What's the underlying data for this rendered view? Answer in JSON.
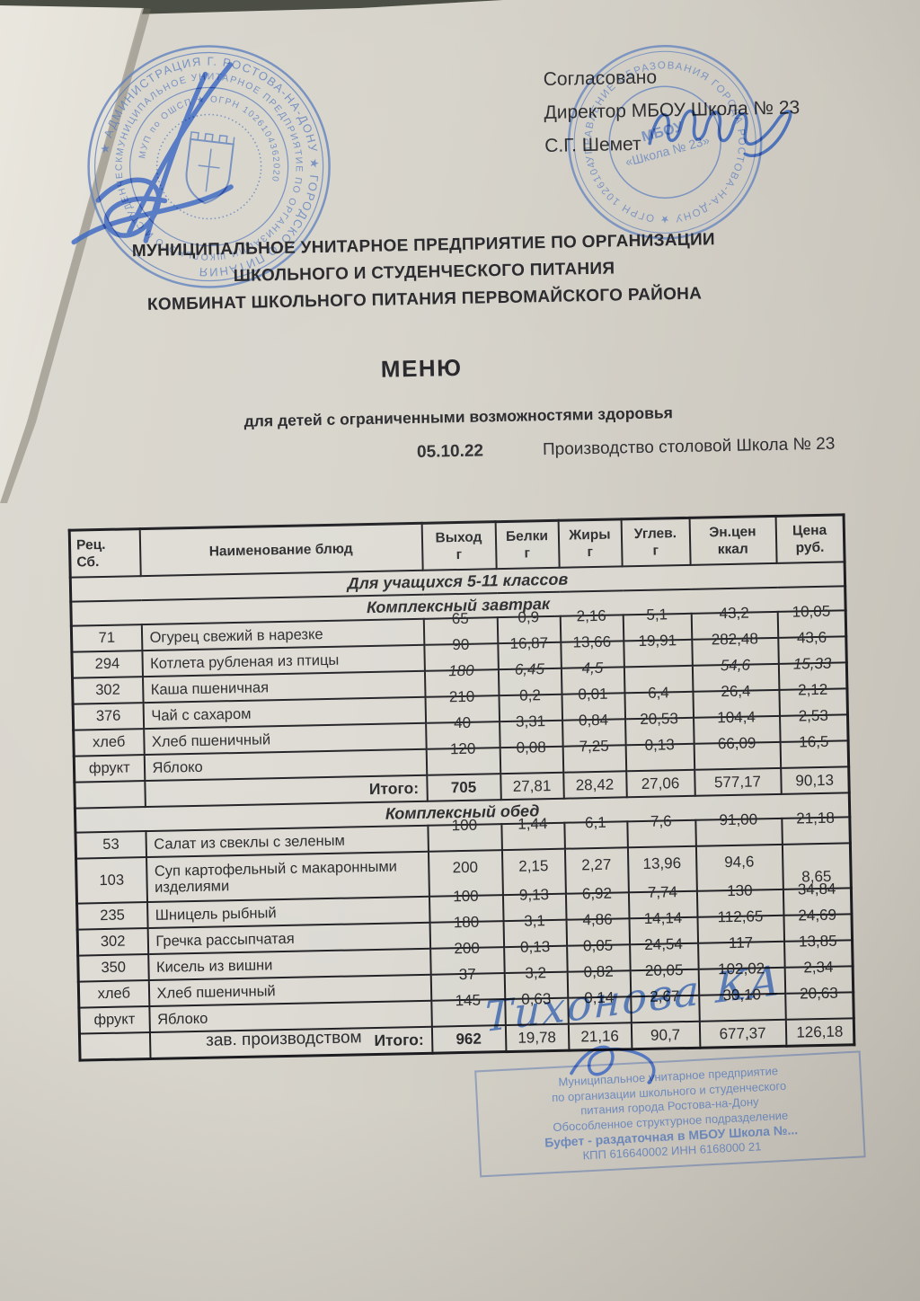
{
  "approval": {
    "line1": "Согласовано",
    "line2": "Директор МБОУ Школа   № 23",
    "line3": "С.Г.  Шемет"
  },
  "org": {
    "line1": "МУНИЦИПАЛЬНОЕ УНИТАРНОЕ ПРЕДПРИЯТИЕ ПО ОРГАНИЗАЦИИ",
    "line2": "ШКОЛЬНОГО И СТУДЕНЧЕСКОГО ПИТАНИЯ",
    "line3": "КОМБИНАТ ШКОЛЬНОГО ПИТАНИЯ ПЕРВОМАЙСКОГО  РАЙОНА"
  },
  "menu": {
    "title": "МЕНЮ",
    "subtitle": "для детей с ограниченными возможностями здоровья",
    "date": "05.10.22",
    "production": "Производство столовой Школа  № 23"
  },
  "table": {
    "headers": {
      "rec1": "Рец.",
      "rec2": "Сб.",
      "name": "Наименование блюд",
      "out1": "Выход",
      "out2": "г",
      "prot1": "Белки",
      "prot2": "г",
      "fat1": "Жиры",
      "fat2": "г",
      "carb1": "Углев.",
      "carb2": "г",
      "kcal1": "Эн.цен",
      "kcal2": "ккал",
      "price1": "Цена",
      "price2": "руб."
    },
    "section_title": "Для учащихся 5-11 классов",
    "total_label": "Итого:",
    "breakfast": {
      "title": "Комплексный  завтрак",
      "rows": [
        {
          "code": "71",
          "name": "Огурец свежий в нарезке",
          "out": "65",
          "protein": "0,9",
          "fat": "2,16",
          "carb": "5,1",
          "kcal": "43,2",
          "price": "10,05"
        },
        {
          "code": "294",
          "name": "Котлета рубленая из птицы",
          "out": "90",
          "protein": "16,87",
          "fat": "13,66",
          "carb": "19,91",
          "kcal": "282,48",
          "price": "43,6"
        },
        {
          "code": "302",
          "name": "Каша пшеничная",
          "out": "180",
          "protein": "6,45",
          "fat": "4,5",
          "carb": "",
          "kcal": "54,6",
          "price": "15,33",
          "italic": true
        },
        {
          "code": "376",
          "name": "Чай с сахаром",
          "out": "210",
          "protein": "0,2",
          "fat": "0,01",
          "carb": "6,4",
          "kcal": "26,4",
          "price": "2,12"
        },
        {
          "code": "хлеб",
          "name": "Хлеб пшеничный",
          "out": "40",
          "protein": "3,31",
          "fat": "0,84",
          "carb": "20,53",
          "kcal": "104,4",
          "price": "2,53"
        },
        {
          "code": "фрукт",
          "name": "Яблоко",
          "out": "120",
          "protein": "0,08",
          "fat": "7,25",
          "carb": "0,13",
          "kcal": "66,09",
          "price": "16,5"
        }
      ],
      "total": {
        "out": "705",
        "protein": "27,81",
        "fat": "28,42",
        "carb": "27,06",
        "kcal": "577,17",
        "price": "90,13"
      }
    },
    "lunch": {
      "title": "Комплексный  обед",
      "rows": [
        {
          "code": "53",
          "name": "Салат из свеклы с зеленым",
          "out": "100",
          "protein": "1,44",
          "fat": "6,1",
          "carb": "7,6",
          "kcal": "91,00",
          "price": "21,18"
        },
        {
          "code": "103",
          "name": "Суп картофельный с макаронными изделиями",
          "out": "200",
          "protein": "2,15",
          "fat": "2,27",
          "carb": "13,96",
          "kcal": "94,6",
          "price": "8,65",
          "tall": true
        },
        {
          "code": "235",
          "name": "Шницель рыбный",
          "out": "100",
          "protein": "9,13",
          "fat": "6,92",
          "carb": "7,74",
          "kcal": "130",
          "price": "34,84"
        },
        {
          "code": "302",
          "name": "Гречка рассыпчатая",
          "out": "180",
          "protein": "3,1",
          "fat": "4,86",
          "carb": "14,14",
          "kcal": "112,65",
          "price": "24,69"
        },
        {
          "code": "350",
          "name": "Кисель из вишни",
          "out": "200",
          "protein": "0,13",
          "fat": "0,05",
          "carb": "24,54",
          "kcal": "117",
          "price": "13,85"
        },
        {
          "code": "хлеб",
          "name": "Хлеб пшеничный",
          "out": "37",
          "protein": "3,2",
          "fat": "0,82",
          "carb": "20,05",
          "kcal": "102,02",
          "price": "2,34"
        },
        {
          "code": "фрукт",
          "name": "Яблоко",
          "out": "145",
          "protein": "0,63",
          "fat": "0,14",
          "carb": "2,67",
          "kcal": "30,10",
          "price": "20,63"
        }
      ],
      "total": {
        "out": "962",
        "protein": "19,78",
        "fat": "21,16",
        "carb": "90,7",
        "kcal": "677,37",
        "price": "126,18"
      }
    }
  },
  "footer": {
    "label": "зав. производством",
    "signature": "Тихонова КА"
  },
  "stamps": {
    "left": {
      "outer_ring": "★ АДМИНИСТРАЦИЯ  Г. РОСТОВА-НА-ДОНУ ★ ГОРОДСКОГО ПИТАНИЯ",
      "mid_ring": "МУНИЦИПАЛЬНОЕ УНИТАРНОЕ ПРЕДПРИЯТИЕ ПО ОРГАНИЗАЦИИ ШКОЛЬНОГО И СТУДЕНЧЕСКОГО ПИТАНИЯ",
      "inner_ring": "МУП по ОШСП ★ ОГРН 1026104362020"
    },
    "right": {
      "ring": "УПРАВЛЕНИЕ ОБРАЗОВАНИЯ ГОРОДА РОСТОВА-НА-ДОНУ ★ ОГРН 1026104157874",
      "center1": "МБОУ",
      "center2": "«Школа № 23»"
    },
    "rect": {
      "lines": [
        "Муниципальное унитарное предприятие",
        "по организации школьного и студенческого",
        "питания города Ростова-на-Дону",
        "Обособленное структурное подразделение",
        "Буфет - раздаточная в МБОУ Школа №...",
        "КПП 616640002    ИНН 6168000 21"
      ]
    }
  }
}
